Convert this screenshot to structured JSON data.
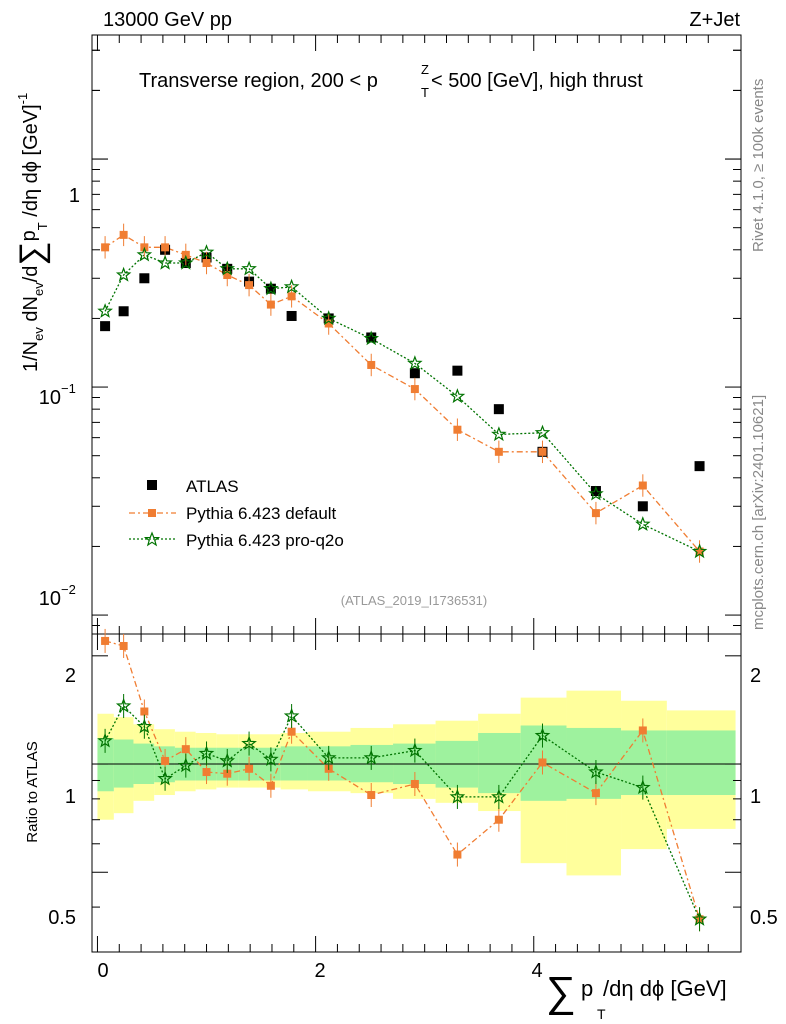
{
  "header": {
    "energy": "13000 GeV pp",
    "process": "Z+Jet",
    "title_main": "Transverse region, 200 < p",
    "title_sup": "Z",
    "title_sub": "T",
    "title_rest": " < 500 [GeV], high thrust",
    "analysis_id": "(ATLAS_2019_I1736531)"
  },
  "side_labels": {
    "rivet": "Rivet 4.1.0, ≥ 100k events",
    "mcplots": "mcplots.cern.ch [arXiv:2401.10621]"
  },
  "axes": {
    "main_ylabel_a": "1/N",
    "main_ylabel_ev": "ev",
    "main_ylabel_b": " dN",
    "main_ylabel_c": "/d",
    "main_ylabel_sum": "∑",
    "main_ylabel_p": "p",
    "main_ylabel_T": "T",
    "main_ylabel_d": " /dη dϕ  [GeV]",
    "main_ylabel_exp": "-1",
    "ratio_ylabel": "Ratio to ATLAS",
    "xlabel_sum": "∑",
    "xlabel_p": "p",
    "xlabel_T": "T",
    "xlabel_rest": " /dη dϕ [GeV]",
    "y_ticks_main": [
      "1",
      "10",
      "10"
    ],
    "y_tick_exps": [
      "",
      "−1",
      "−2"
    ],
    "x_tick_labels": [
      "0",
      "2",
      "4"
    ],
    "ratio_tick_labels": [
      "2",
      "1",
      "0.5"
    ]
  },
  "legend": {
    "atlas": "ATLAS",
    "default": "Pythia 6.423 default",
    "proq2o": "Pythia 6.423 pro-q2o"
  },
  "colors": {
    "data": "#000000",
    "default": "#f07d32",
    "proq2o": "#007300",
    "band_inner": "#9ef29e",
    "band_outer": "#ffff9c"
  },
  "chart_data": {
    "type": "scatter",
    "x_range": [
      -0.05,
      5.9
    ],
    "y_range_log": [
      0.00826,
      3.5
    ],
    "ratio_range": [
      0.3,
      2.3
    ],
    "x": [
      0.07,
      0.24,
      0.43,
      0.62,
      0.81,
      1.0,
      1.19,
      1.39,
      1.59,
      1.78,
      2.12,
      2.51,
      2.91,
      3.3,
      3.68,
      4.08,
      4.57,
      5.0,
      5.52
    ],
    "series": [
      {
        "name": "ATLAS",
        "values": [
          0.185,
          0.215,
          0.3,
          0.4,
          0.35,
          0.37,
          0.33,
          0.29,
          0.27,
          0.205,
          0.2,
          0.165,
          0.115,
          0.118,
          0.08,
          0.052,
          0.035,
          0.03,
          0.045
        ]
      },
      {
        "name": "Pythia 6.423 default",
        "values": [
          0.41,
          0.465,
          0.41,
          0.41,
          0.38,
          0.35,
          0.31,
          0.28,
          0.23,
          0.25,
          0.19,
          0.125,
          0.098,
          0.065,
          0.052,
          0.052,
          0.028,
          0.037,
          0.019
        ]
      },
      {
        "name": "Pythia 6.423 pro-q2o",
        "values": [
          0.215,
          0.31,
          0.38,
          0.35,
          0.35,
          0.39,
          0.33,
          0.33,
          0.27,
          0.275,
          0.2,
          0.163,
          0.127,
          0.091,
          0.062,
          0.063,
          0.034,
          0.025,
          0.019
        ]
      }
    ],
    "ratio": {
      "default": [
        2.2,
        2.13,
        1.4,
        1.02,
        1.1,
        0.95,
        0.94,
        0.97,
        0.87,
        1.23,
        0.97,
        0.82,
        0.88,
        0.56,
        0.7,
        1.01,
        0.83,
        1.24,
        0.37
      ],
      "proq2o": [
        1.16,
        1.45,
        1.27,
        0.91,
        0.99,
        1.07,
        1.02,
        1.14,
        1.03,
        1.36,
        1.04,
        1.04,
        1.09,
        0.81,
        0.81,
        1.2,
        0.95,
        0.86,
        0.37
      ]
    },
    "bands": {
      "edges": [
        0.0,
        0.15,
        0.33,
        0.52,
        0.71,
        0.9,
        1.09,
        1.29,
        1.49,
        1.68,
        1.93,
        2.32,
        2.71,
        3.1,
        3.49,
        3.88,
        4.3,
        4.8,
        5.22,
        5.85
      ],
      "inner": [
        [
          0.84,
          1.18
        ],
        [
          0.86,
          1.17
        ],
        [
          0.88,
          1.14
        ],
        [
          0.89,
          1.12
        ],
        [
          0.9,
          1.11
        ],
        [
          0.9,
          1.11
        ],
        [
          0.9,
          1.11
        ],
        [
          0.9,
          1.11
        ],
        [
          0.9,
          1.11
        ],
        [
          0.9,
          1.12
        ],
        [
          0.9,
          1.12
        ],
        [
          0.89,
          1.13
        ],
        [
          0.88,
          1.14
        ],
        [
          0.86,
          1.16
        ],
        [
          0.83,
          1.22
        ],
        [
          0.79,
          1.28
        ],
        [
          0.8,
          1.26
        ],
        [
          0.82,
          1.24
        ],
        [
          0.82,
          1.24
        ]
      ],
      "outer": [
        [
          0.7,
          1.38
        ],
        [
          0.73,
          1.35
        ],
        [
          0.79,
          1.29
        ],
        [
          0.82,
          1.25
        ],
        [
          0.84,
          1.23
        ],
        [
          0.85,
          1.22
        ],
        [
          0.86,
          1.21
        ],
        [
          0.86,
          1.21
        ],
        [
          0.86,
          1.21
        ],
        [
          0.85,
          1.22
        ],
        [
          0.84,
          1.23
        ],
        [
          0.83,
          1.26
        ],
        [
          0.8,
          1.29
        ],
        [
          0.78,
          1.32
        ],
        [
          0.74,
          1.38
        ],
        [
          0.53,
          1.53
        ],
        [
          0.49,
          1.6
        ],
        [
          0.58,
          1.5
        ],
        [
          0.66,
          1.41
        ]
      ]
    },
    "title": "Transverse region, 200 < pT^Z < 500 [GeV], high thrust",
    "xlabel": "∑ pT /dη dϕ [GeV]",
    "ylabel": "1/Nev dNev/d∑ pT /dη dϕ [GeV]^-1"
  }
}
